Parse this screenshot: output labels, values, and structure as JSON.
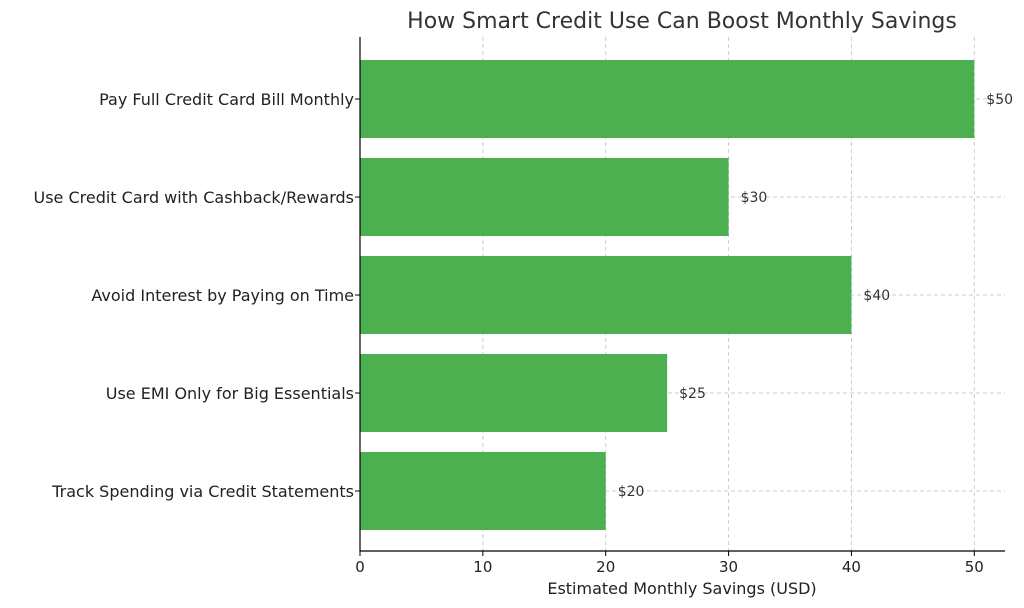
{
  "chart_data": {
    "type": "bar",
    "orientation": "horizontal",
    "title": "How Smart Credit Use Can Boost Monthly Savings",
    "xlabel": "Estimated Monthly Savings (USD)",
    "ylabel": "",
    "categories": [
      "Pay Full Credit Card Bill Monthly",
      "Use Credit Card with Cashback/Rewards",
      "Avoid Interest by Paying on Time",
      "Use EMI Only for Big Essentials",
      "Track Spending via Credit Statements"
    ],
    "values": [
      50,
      30,
      40,
      25,
      20
    ],
    "value_labels": [
      "$50",
      "$30",
      "$40",
      "$25",
      "$20"
    ],
    "xlim": [
      0,
      52.5
    ],
    "xticks": [
      0,
      10,
      20,
      30,
      40,
      50
    ],
    "xtick_labels": [
      "0",
      "10",
      "20",
      "30",
      "40",
      "50"
    ],
    "grid": true,
    "bar_color": "#4caf50"
  }
}
